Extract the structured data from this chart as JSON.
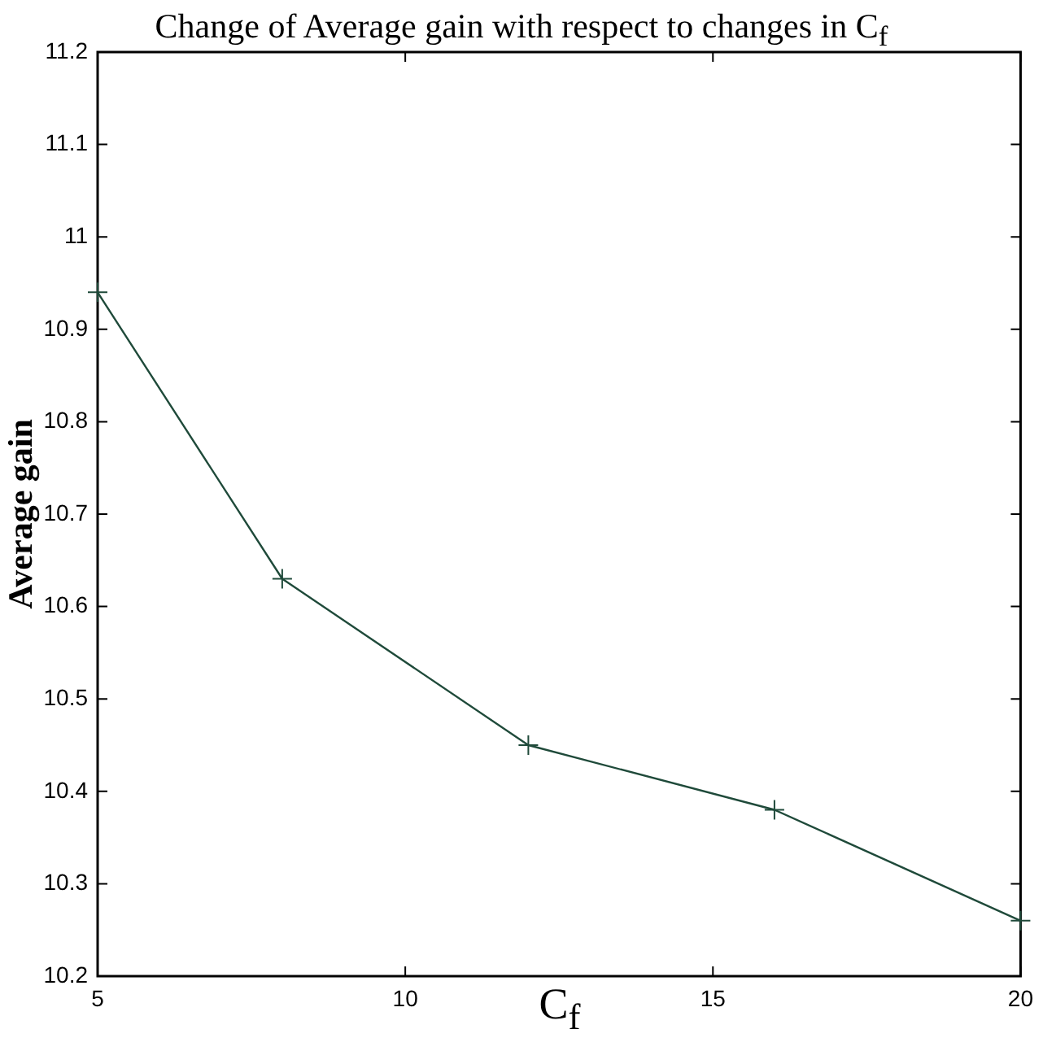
{
  "chart_data": {
    "type": "line",
    "title": "Change of Average gain with respect to changes in C$_{f}$",
    "xlabel": "C$_{f}$",
    "ylabel": "Average gain",
    "x": [
      5,
      8,
      12,
      16,
      20
    ],
    "series": [
      {
        "color": "#1f4a3a",
        "values": [
          10.94,
          10.63,
          10.45,
          10.38,
          10.26
        ]
      }
    ],
    "xlim": [
      5,
      20
    ],
    "xticks": [
      5,
      10,
      15,
      20
    ],
    "ylim": [
      10.2,
      11.2
    ],
    "yticks": [
      10.2,
      10.3,
      10.4,
      10.5,
      10.6,
      10.7,
      10.8,
      10.9,
      11,
      11.1,
      11.2
    ],
    "grid": false,
    "legend": false,
    "marker": "cross",
    "line_style": "solid"
  }
}
